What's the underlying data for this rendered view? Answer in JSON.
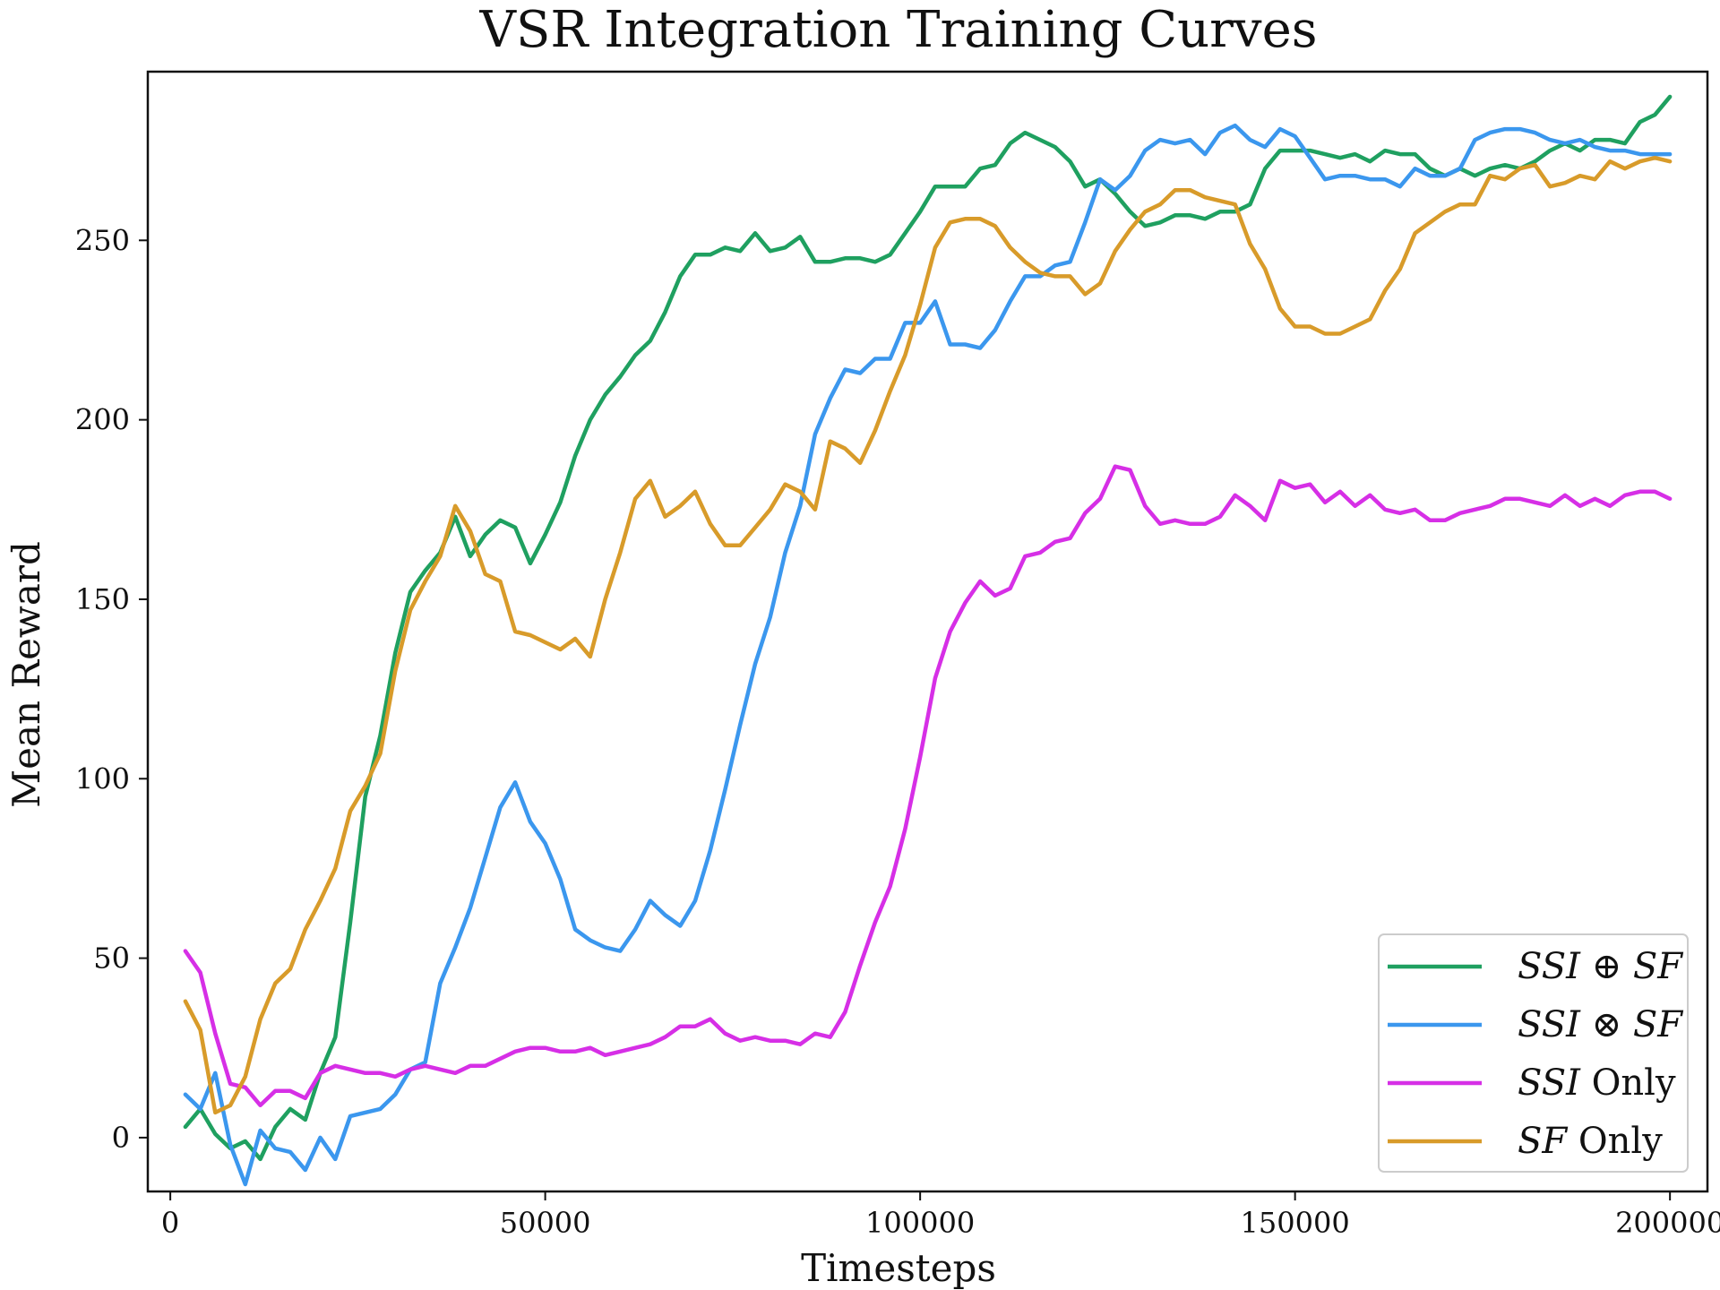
{
  "chart_data": {
    "type": "line",
    "title": "VSR Integration Training Curves",
    "xlabel": "Timesteps",
    "ylabel": "Mean Reward",
    "xlim": [
      -3000,
      205000
    ],
    "ylim": [
      -15,
      297
    ],
    "xticks": [
      0,
      50000,
      100000,
      150000,
      200000
    ],
    "yticks": [
      0,
      50,
      100,
      150,
      200,
      250
    ],
    "grid": false,
    "legend_position": "lower-right",
    "x": [
      2000,
      4000,
      6000,
      8000,
      10000,
      12000,
      14000,
      16000,
      18000,
      20000,
      22000,
      24000,
      26000,
      28000,
      30000,
      32000,
      34000,
      36000,
      38000,
      40000,
      42000,
      44000,
      46000,
      48000,
      50000,
      52000,
      54000,
      56000,
      58000,
      60000,
      62000,
      64000,
      66000,
      68000,
      70000,
      72000,
      74000,
      76000,
      78000,
      80000,
      82000,
      84000,
      86000,
      88000,
      90000,
      92000,
      94000,
      96000,
      98000,
      100000,
      102000,
      104000,
      106000,
      108000,
      110000,
      112000,
      114000,
      116000,
      118000,
      120000,
      122000,
      124000,
      126000,
      128000,
      130000,
      132000,
      134000,
      136000,
      138000,
      140000,
      142000,
      144000,
      146000,
      148000,
      150000,
      152000,
      154000,
      156000,
      158000,
      160000,
      162000,
      164000,
      166000,
      168000,
      170000,
      172000,
      174000,
      176000,
      178000,
      180000,
      182000,
      184000,
      186000,
      188000,
      190000,
      192000,
      194000,
      196000,
      198000,
      200000
    ],
    "series": [
      {
        "name_main": "SSI ⊕ SF",
        "name_suffix": "",
        "color": "#1fa060",
        "values": [
          3,
          8,
          1,
          -3,
          -1,
          -6,
          3,
          8,
          5,
          18,
          28,
          60,
          95,
          112,
          135,
          152,
          158,
          163,
          173,
          162,
          168,
          172,
          170,
          160,
          168,
          177,
          190,
          200,
          207,
          212,
          218,
          222,
          230,
          240,
          246,
          246,
          248,
          247,
          252,
          247,
          248,
          251,
          244,
          244,
          245,
          245,
          244,
          246,
          252,
          258,
          265,
          265,
          265,
          270,
          271,
          277,
          280,
          278,
          276,
          272,
          265,
          267,
          263,
          258,
          254,
          255,
          257,
          257,
          256,
          258,
          258,
          260,
          270,
          275,
          275,
          275,
          274,
          273,
          274,
          272,
          275,
          274,
          274,
          270,
          268,
          270,
          268,
          270,
          271,
          270,
          272,
          275,
          277,
          275,
          278,
          278,
          277,
          283,
          285,
          290
        ]
      },
      {
        "name_main": "SSI ⊗ SF",
        "name_suffix": "",
        "color": "#3b97ee",
        "values": [
          12,
          8,
          18,
          -2,
          -13,
          2,
          -3,
          -4,
          -9,
          0,
          -6,
          6,
          7,
          8,
          12,
          19,
          21,
          43,
          53,
          64,
          78,
          92,
          99,
          88,
          82,
          72,
          58,
          55,
          53,
          52,
          58,
          66,
          62,
          59,
          66,
          80,
          97,
          115,
          132,
          145,
          163,
          176,
          196,
          206,
          214,
          213,
          217,
          217,
          227,
          227,
          233,
          221,
          221,
          220,
          225,
          233,
          240,
          240,
          243,
          244,
          255,
          267,
          264,
          268,
          275,
          278,
          277,
          278,
          274,
          280,
          282,
          278,
          276,
          281,
          279,
          273,
          267,
          268,
          268,
          267,
          267,
          265,
          270,
          268,
          268,
          270,
          278,
          280,
          281,
          281,
          280,
          278,
          277,
          278,
          276,
          275,
          275,
          274,
          274,
          274
        ]
      },
      {
        "name_main": "SSI",
        "name_suffix": " Only",
        "color": "#d62fe6",
        "values": [
          52,
          46,
          29,
          15,
          14,
          9,
          13,
          13,
          11,
          18,
          20,
          19,
          18,
          18,
          17,
          19,
          20,
          19,
          18,
          20,
          20,
          22,
          24,
          25,
          25,
          24,
          24,
          25,
          23,
          24,
          25,
          26,
          28,
          31,
          31,
          33,
          29,
          27,
          28,
          27,
          27,
          26,
          29,
          28,
          35,
          48,
          60,
          70,
          86,
          106,
          128,
          141,
          149,
          155,
          151,
          153,
          162,
          163,
          166,
          167,
          174,
          178,
          187,
          186,
          176,
          171,
          172,
          171,
          171,
          173,
          179,
          176,
          172,
          183,
          181,
          182,
          177,
          180,
          176,
          179,
          175,
          174,
          175,
          172,
          172,
          174,
          175,
          176,
          178,
          178,
          177,
          176,
          179,
          176,
          178,
          176,
          179,
          180,
          180,
          178
        ]
      },
      {
        "name_main": "SF",
        "name_suffix": " Only",
        "color": "#d89b2a",
        "values": [
          38,
          30,
          7,
          9,
          17,
          33,
          43,
          47,
          58,
          66,
          75,
          91,
          98,
          107,
          130,
          147,
          155,
          162,
          176,
          169,
          157,
          155,
          141,
          140,
          138,
          136,
          139,
          134,
          150,
          163,
          178,
          183,
          173,
          176,
          180,
          171,
          165,
          165,
          170,
          175,
          182,
          180,
          175,
          194,
          192,
          188,
          197,
          208,
          218,
          232,
          248,
          255,
          256,
          256,
          254,
          248,
          244,
          241,
          240,
          240,
          235,
          238,
          247,
          253,
          258,
          260,
          264,
          264,
          262,
          261,
          260,
          249,
          242,
          231,
          226,
          226,
          224,
          224,
          226,
          228,
          236,
          242,
          252,
          255,
          258,
          260,
          260,
          268,
          267,
          270,
          271,
          265,
          266,
          268,
          267,
          272,
          270,
          272,
          273,
          272
        ]
      }
    ]
  }
}
